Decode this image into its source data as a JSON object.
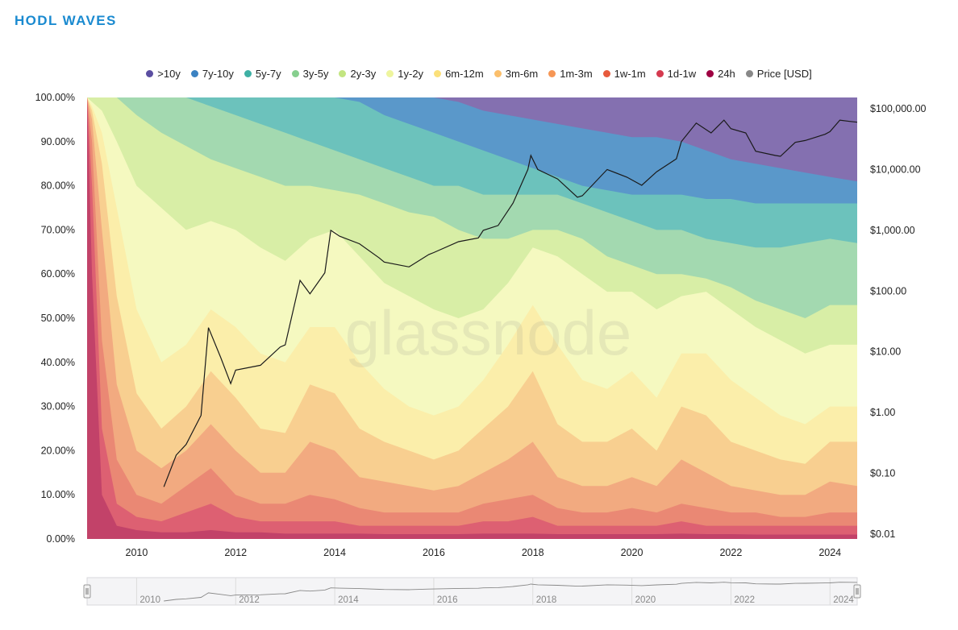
{
  "title": "HODL WAVES",
  "watermark": "glassnode",
  "colors": {
    "title": "#1a8ad0",
    "bands": [
      "#8470b0",
      "#5a98ca",
      "#6cc2bc",
      "#a3d9b0",
      "#d8eea6",
      "#f5f9c0",
      "#fbeeaa",
      "#f8cf90",
      "#f2aa80",
      "#ea8874",
      "#dd6072",
      "#c24269"
    ],
    "price": "#1a1a1a"
  },
  "legend": [
    {
      "label": ">10y",
      "color": "#5b4ea1"
    },
    {
      "label": "7y-10y",
      "color": "#3b82c2"
    },
    {
      "label": "5y-7y",
      "color": "#3eb0a4"
    },
    {
      "label": "3y-5y",
      "color": "#86cf8e"
    },
    {
      "label": "2y-3y",
      "color": "#c3e581"
    },
    {
      "label": "1y-2y",
      "color": "#eef59e"
    },
    {
      "label": "6m-12m",
      "color": "#fbe07a"
    },
    {
      "label": "3m-6m",
      "color": "#fbbf6b"
    },
    {
      "label": "1m-3m",
      "color": "#f69655"
    },
    {
      "label": "1w-1m",
      "color": "#e75a3c"
    },
    {
      "label": "1d-1w",
      "color": "#d53a4f"
    },
    {
      "label": "24h",
      "color": "#9e0142"
    },
    {
      "label": "Price [USD]",
      "color": "#888888"
    }
  ],
  "chart_data": {
    "type": "area",
    "stacking": "percent",
    "x_unit": "year",
    "xlim": [
      2009.0,
      2024.55
    ],
    "ylim": [
      0,
      100
    ],
    "y_ticks": [
      "0.00%",
      "10.00%",
      "20.00%",
      "30.00%",
      "40.00%",
      "50.00%",
      "60.00%",
      "70.00%",
      "80.00%",
      "90.00%",
      "100.00%"
    ],
    "x_ticks": [
      "2010",
      "2012",
      "2014",
      "2016",
      "2018",
      "2020",
      "2022",
      "2024"
    ],
    "y2_scale": "log",
    "y2_range": [
      0.01,
      100000
    ],
    "y2_ticks": [
      "$0.01",
      "$0.10",
      "$1.00",
      "$10.00",
      "$100.00",
      "$1,000.00",
      "$10,000.00",
      "$100,000.00"
    ],
    "x": [
      2009.0,
      2009.1,
      2009.3,
      2009.6,
      2010.0,
      2010.5,
      2011.0,
      2011.5,
      2012.0,
      2012.5,
      2013.0,
      2013.5,
      2014.0,
      2014.5,
      2015.0,
      2015.5,
      2016.0,
      2016.5,
      2017.0,
      2017.5,
      2018.0,
      2018.5,
      2019.0,
      2019.5,
      2020.0,
      2020.5,
      2021.0,
      2021.5,
      2022.0,
      2022.5,
      2023.0,
      2023.5,
      2024.0,
      2024.55
    ],
    "boundaries_note": "cumulative upper edge (%) of each band, from youngest (24h) to 7y-10y; >10y fills to 100%",
    "boundaries": [
      {
        "name": "24h",
        "values": [
          100,
          60,
          10,
          3,
          2,
          1.5,
          1.5,
          2,
          1.5,
          1.5,
          1.2,
          1.2,
          1.2,
          1.2,
          1.1,
          1.1,
          1.1,
          1.1,
          1.2,
          1.2,
          1.2,
          1.1,
          1.1,
          1.1,
          1.1,
          1.1,
          1.2,
          1.1,
          1.1,
          1,
          1,
          1,
          1,
          1
        ]
      },
      {
        "name": "1d-1w",
        "values": [
          100,
          80,
          25,
          8,
          5,
          4,
          6,
          8,
          5,
          4,
          4,
          4,
          4,
          3,
          3,
          3,
          3,
          3,
          4,
          4,
          5,
          3,
          3,
          3,
          3,
          3,
          4,
          3,
          3,
          3,
          3,
          3,
          3,
          3
        ]
      },
      {
        "name": "1w-1m",
        "values": [
          100,
          90,
          45,
          18,
          10,
          8,
          12,
          16,
          10,
          8,
          8,
          10,
          9,
          7,
          6,
          6,
          6,
          6,
          8,
          9,
          10,
          7,
          6,
          6,
          7,
          6,
          8,
          7,
          6,
          6,
          5,
          5,
          6,
          6
        ]
      },
      {
        "name": "1m-3m",
        "values": [
          100,
          95,
          70,
          35,
          20,
          16,
          20,
          26,
          20,
          15,
          15,
          22,
          20,
          14,
          13,
          12,
          11,
          12,
          15,
          18,
          22,
          14,
          12,
          12,
          14,
          12,
          18,
          15,
          12,
          11,
          10,
          10,
          13,
          12
        ]
      },
      {
        "name": "3m-6m",
        "values": [
          100,
          97,
          85,
          55,
          33,
          25,
          30,
          38,
          32,
          25,
          24,
          35,
          33,
          25,
          22,
          20,
          18,
          20,
          25,
          30,
          38,
          26,
          22,
          22,
          25,
          20,
          30,
          28,
          22,
          20,
          18,
          17,
          22,
          22
        ]
      },
      {
        "name": "6m-12m",
        "values": [
          100,
          98,
          92,
          75,
          52,
          40,
          44,
          52,
          48,
          42,
          40,
          48,
          48,
          40,
          34,
          30,
          28,
          30,
          36,
          44,
          53,
          44,
          36,
          34,
          38,
          32,
          42,
          42,
          36,
          32,
          28,
          26,
          30,
          30
        ]
      },
      {
        "name": "1y-2y",
        "values": [
          100,
          99,
          97,
          90,
          80,
          75,
          70,
          72,
          70,
          66,
          63,
          68,
          70,
          64,
          58,
          55,
          52,
          50,
          52,
          58,
          66,
          64,
          60,
          56,
          56,
          52,
          55,
          56,
          52,
          48,
          45,
          42,
          44,
          44
        ]
      },
      {
        "name": "2y-3y",
        "values": [
          100,
          100,
          100,
          100,
          96,
          92,
          89,
          86,
          84,
          82,
          80,
          80,
          79,
          78,
          76,
          74,
          73,
          70,
          68,
          68,
          70,
          70,
          68,
          64,
          62,
          60,
          60,
          59,
          57,
          54,
          52,
          50,
          53,
          53
        ]
      },
      {
        "name": "3y-5y",
        "values": [
          100,
          100,
          100,
          100,
          100,
          100,
          100,
          98,
          96,
          94,
          92,
          90,
          88,
          86,
          84,
          82,
          80,
          80,
          78,
          78,
          78,
          78,
          76,
          74,
          72,
          70,
          70,
          68,
          67,
          66,
          66,
          67,
          68,
          67
        ]
      },
      {
        "name": "5y-7y",
        "values": [
          100,
          100,
          100,
          100,
          100,
          100,
          100,
          100,
          100,
          100,
          100,
          100,
          100,
          99,
          96,
          94,
          92,
          90,
          88,
          86,
          84,
          82,
          80,
          79,
          78,
          78,
          78,
          77,
          77,
          76,
          76,
          76,
          76,
          76
        ]
      },
      {
        "name": "7y-10y",
        "values": [
          100,
          100,
          100,
          100,
          100,
          100,
          100,
          100,
          100,
          100,
          100,
          100,
          100,
          100,
          100,
          100,
          100,
          99,
          97,
          96,
          95,
          94,
          93,
          92,
          91,
          91,
          90,
          88,
          86,
          85,
          84,
          83,
          82,
          81
        ]
      }
    ],
    "price": {
      "name": "Price [USD]",
      "x": [
        2010.55,
        2010.8,
        2011.0,
        2011.3,
        2011.45,
        2011.7,
        2011.9,
        2012.0,
        2012.5,
        2012.9,
        2013.0,
        2013.3,
        2013.5,
        2013.8,
        2013.92,
        2014.1,
        2014.5,
        2014.9,
        2015.0,
        2015.5,
        2015.9,
        2016.0,
        2016.5,
        2016.9,
        2017.0,
        2017.3,
        2017.6,
        2017.9,
        2017.96,
        2018.1,
        2018.5,
        2018.9,
        2019.0,
        2019.5,
        2019.9,
        2020.2,
        2020.5,
        2020.9,
        2021.0,
        2021.3,
        2021.6,
        2021.86,
        2022.0,
        2022.3,
        2022.5,
        2022.9,
        2023.0,
        2023.3,
        2023.5,
        2023.9,
        2024.0,
        2024.2,
        2024.4,
        2024.55
      ],
      "values": [
        0.06,
        0.2,
        0.3,
        0.9,
        25,
        8,
        3,
        5,
        6,
        12,
        13,
        150,
        90,
        200,
        1000,
        800,
        600,
        350,
        300,
        250,
        400,
        430,
        650,
        750,
        1000,
        1200,
        2800,
        10000,
        17000,
        10000,
        7000,
        3500,
        3700,
        10000,
        7500,
        5500,
        9200,
        15000,
        29000,
        58000,
        40000,
        65000,
        47000,
        40000,
        20000,
        17000,
        16500,
        28000,
        30000,
        38000,
        42000,
        65000,
        62000,
        60000
      ]
    }
  },
  "navigator": {
    "ticks": [
      "2010",
      "2012",
      "2014",
      "2016",
      "2018",
      "2020",
      "2022",
      "2024"
    ]
  }
}
